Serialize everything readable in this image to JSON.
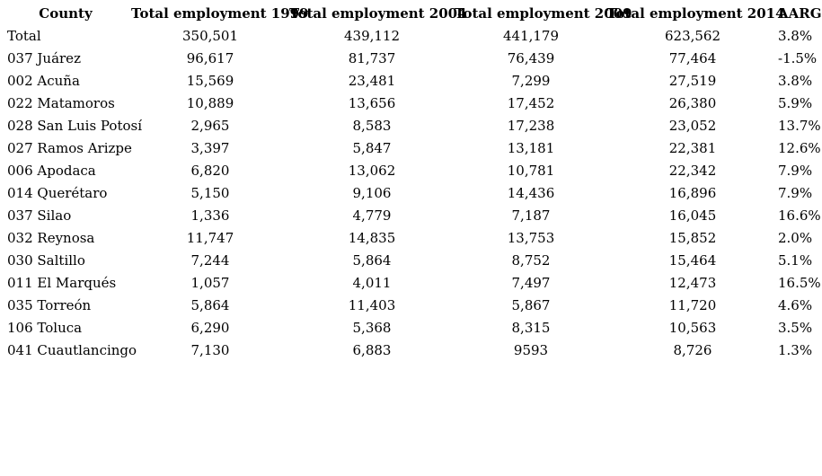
{
  "page": {
    "background_color": "#ffffff",
    "text_color": "#000000"
  },
  "chart_data": {
    "type": "table",
    "title": "",
    "columns": [
      "County",
      "Total employment 1999",
      "Total employment 2004",
      "Total employment 2009",
      "Total employment 2014",
      "AARG"
    ],
    "rows": [
      [
        "Total",
        "350,501",
        "439,112",
        "441,179",
        "623,562",
        "3.8%"
      ],
      [
        "037 Juárez",
        "96,617",
        "81,737",
        "76,439",
        "77,464",
        "-1.5%"
      ],
      [
        "002 Acuña",
        "15,569",
        "23,481",
        "7,299",
        "27,519",
        "3.8%"
      ],
      [
        "022 Matamoros",
        "10,889",
        "13,656",
        "17,452",
        "26,380",
        "5.9%"
      ],
      [
        "028 San Luis Potosí",
        "2,965",
        "8,583",
        "17,238",
        "23,052",
        "13.7%"
      ],
      [
        "027 Ramos Arizpe",
        "3,397",
        "5,847",
        "13,181",
        "22,381",
        "12.6%"
      ],
      [
        "006 Apodaca",
        "6,820",
        "13,062",
        "10,781",
        "22,342",
        "7.9%"
      ],
      [
        "014 Querétaro",
        "5,150",
        "9,106",
        "14,436",
        "16,896",
        "7.9%"
      ],
      [
        "037 Silao",
        "1,336",
        "4,779",
        "7,187",
        "16,045",
        "16.6%"
      ],
      [
        "032 Reynosa",
        "11,747",
        "14,835",
        "13,753",
        "15,852",
        "2.0%"
      ],
      [
        "030 Saltillo",
        "7,244",
        "5,864",
        "8,752",
        "15,464",
        "5.1%"
      ],
      [
        "011 El Marqués",
        "1,057",
        "4,011",
        "7,497",
        "12,473",
        "16.5%"
      ],
      [
        "035 Torreón",
        "5,864",
        "11,403",
        "5,867",
        "11,720",
        "4.6%"
      ],
      [
        "106 Toluca",
        "6,290",
        "5,368",
        "8,315",
        "10,563",
        "3.5%"
      ],
      [
        "041 Cuautlancingo",
        "7,130",
        "6,883",
        "9593",
        "8,726",
        "1.3%"
      ]
    ]
  }
}
